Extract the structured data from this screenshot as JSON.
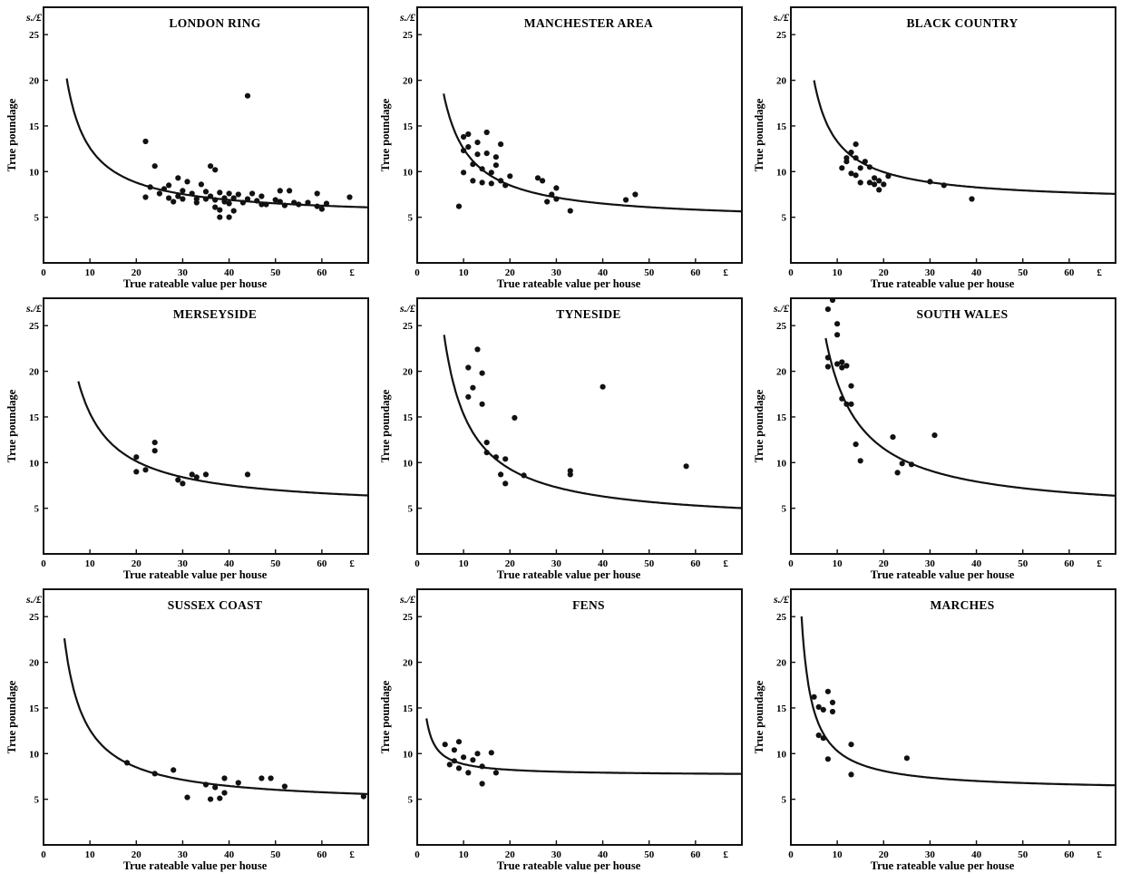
{
  "chart_data": [
    {
      "type": "scatter",
      "title": "LONDON RING",
      "unit_label": "s./£",
      "xlabel": "True rateable value per house",
      "ylabel": "True poundage",
      "x_ticks": [
        "0",
        "10",
        "20",
        "30",
        "40",
        "50",
        "60",
        "£"
      ],
      "y_ticks": [
        "5",
        "10",
        "15",
        "20",
        "25"
      ],
      "xlim": [
        0,
        70
      ],
      "ylim": [
        0,
        28
      ],
      "curve": {
        "a": 5.0,
        "b": 76,
        "x_start": 5
      },
      "points": [
        [
          22,
          13.3
        ],
        [
          22,
          7.2
        ],
        [
          23,
          8.3
        ],
        [
          24,
          10.6
        ],
        [
          25,
          7.6
        ],
        [
          26,
          8.1
        ],
        [
          27,
          7.1
        ],
        [
          27,
          8.5
        ],
        [
          28,
          6.7
        ],
        [
          29,
          9.3
        ],
        [
          29,
          7.3
        ],
        [
          30,
          7.0
        ],
        [
          30,
          7.9
        ],
        [
          31,
          8.9
        ],
        [
          32,
          7.6
        ],
        [
          33,
          7.0
        ],
        [
          33,
          6.6
        ],
        [
          34,
          8.6
        ],
        [
          35,
          7.8
        ],
        [
          35,
          7.0
        ],
        [
          36,
          10.6
        ],
        [
          36,
          7.3
        ],
        [
          37,
          10.2
        ],
        [
          37,
          6.9
        ],
        [
          37,
          6.1
        ],
        [
          38,
          7.7
        ],
        [
          38,
          5.0
        ],
        [
          38,
          5.8
        ],
        [
          39,
          7.1
        ],
        [
          39,
          6.7
        ],
        [
          40,
          7.6
        ],
        [
          40,
          6.5
        ],
        [
          40,
          5.0
        ],
        [
          41,
          7.1
        ],
        [
          41,
          5.7
        ],
        [
          42,
          7.5
        ],
        [
          43,
          6.6
        ],
        [
          44,
          18.3
        ],
        [
          44,
          7.0
        ],
        [
          45,
          7.6
        ],
        [
          46,
          6.8
        ],
        [
          47,
          7.3
        ],
        [
          47,
          6.4
        ],
        [
          48,
          6.4
        ],
        [
          50,
          6.9
        ],
        [
          51,
          7.9
        ],
        [
          51,
          6.7
        ],
        [
          52,
          6.3
        ],
        [
          53,
          7.9
        ],
        [
          54,
          6.6
        ],
        [
          55,
          6.4
        ],
        [
          57,
          6.6
        ],
        [
          59,
          6.2
        ],
        [
          59,
          7.6
        ],
        [
          60,
          5.9
        ],
        [
          61,
          6.5
        ],
        [
          66,
          7.2
        ]
      ]
    },
    {
      "type": "scatter",
      "title": "MANCHESTER AREA",
      "unit_label": "s./£",
      "xlabel": "True rateable value per house",
      "ylabel": "True poundage",
      "x_ticks": [
        "0",
        "10",
        "20",
        "30",
        "40",
        "50",
        "60",
        "£"
      ],
      "y_ticks": [
        "5",
        "10",
        "15",
        "20",
        "25"
      ],
      "xlim": [
        0,
        70
      ],
      "ylim": [
        0,
        28
      ],
      "curve": {
        "a": 4.5,
        "b": 80,
        "x_start": 5.7
      },
      "points": [
        [
          9,
          6.2
        ],
        [
          10,
          12.3
        ],
        [
          10,
          13.8
        ],
        [
          10,
          9.9
        ],
        [
          11,
          12.7
        ],
        [
          11,
          14.1
        ],
        [
          12,
          9.0
        ],
        [
          12,
          10.8
        ],
        [
          13,
          11.9
        ],
        [
          13,
          13.2
        ],
        [
          14,
          8.8
        ],
        [
          14,
          10.3
        ],
        [
          15,
          12.0
        ],
        [
          15,
          14.3
        ],
        [
          16,
          9.9
        ],
        [
          16,
          8.7
        ],
        [
          17,
          10.7
        ],
        [
          17,
          11.6
        ],
        [
          18,
          13.0
        ],
        [
          18,
          9.0
        ],
        [
          19,
          8.5
        ],
        [
          20,
          9.5
        ],
        [
          26,
          9.3
        ],
        [
          27,
          9.0
        ],
        [
          28,
          6.7
        ],
        [
          29,
          7.5
        ],
        [
          30,
          8.2
        ],
        [
          30,
          7.0
        ],
        [
          33,
          5.7
        ],
        [
          45,
          6.9
        ],
        [
          47,
          7.5
        ]
      ]
    },
    {
      "type": "scatter",
      "title": "BLACK COUNTRY",
      "unit_label": "s./£",
      "xlabel": "True rateable value per house",
      "ylabel": "True poundage",
      "x_ticks": [
        "0",
        "10",
        "20",
        "30",
        "40",
        "50",
        "60",
        "£"
      ],
      "y_ticks": [
        "5",
        "10",
        "15",
        "20",
        "25"
      ],
      "xlim": [
        0,
        70
      ],
      "ylim": [
        0,
        28
      ],
      "curve": {
        "a": 6.6,
        "b": 67,
        "x_start": 5
      },
      "points": [
        [
          11,
          10.4
        ],
        [
          12,
          11.5
        ],
        [
          12,
          11.1
        ],
        [
          13,
          12.1
        ],
        [
          13,
          9.8
        ],
        [
          14,
          13.0
        ],
        [
          14,
          11.5
        ],
        [
          14,
          9.6
        ],
        [
          15,
          10.4
        ],
        [
          15,
          8.8
        ],
        [
          16,
          11.1
        ],
        [
          17,
          10.5
        ],
        [
          17,
          8.8
        ],
        [
          18,
          9.3
        ],
        [
          18,
          8.6
        ],
        [
          19,
          9.0
        ],
        [
          19,
          8.0
        ],
        [
          20,
          8.6
        ],
        [
          21,
          9.5
        ],
        [
          30,
          8.9
        ],
        [
          33,
          8.5
        ],
        [
          39,
          7.0
        ]
      ]
    },
    {
      "type": "scatter",
      "title": "MERSEYSIDE",
      "unit_label": "s./£",
      "xlabel": "True rateable value per house",
      "ylabel": "True poundage",
      "x_ticks": [
        "0",
        "10",
        "20",
        "30",
        "40",
        "50",
        "60",
        "£"
      ],
      "y_ticks": [
        "5",
        "10",
        "15",
        "20",
        "25"
      ],
      "xlim": [
        0,
        70
      ],
      "ylim": [
        0,
        28
      ],
      "curve": {
        "a": 4.9,
        "b": 105,
        "x_start": 7.5
      },
      "points": [
        [
          20,
          10.6
        ],
        [
          20,
          9.0
        ],
        [
          22,
          9.2
        ],
        [
          24,
          12.2
        ],
        [
          24,
          11.3
        ],
        [
          29,
          8.1
        ],
        [
          30,
          7.7
        ],
        [
          32,
          8.7
        ],
        [
          33,
          8.4
        ],
        [
          35,
          8.7
        ],
        [
          44,
          8.7
        ]
      ]
    },
    {
      "type": "scatter",
      "title": "TYNESIDE",
      "unit_label": "s./£",
      "xlabel": "True rateable value per house",
      "ylabel": "True poundage",
      "x_ticks": [
        "0",
        "10",
        "20",
        "30",
        "40",
        "50",
        "60",
        "£"
      ],
      "y_ticks": [
        "5",
        "10",
        "15",
        "20",
        "25"
      ],
      "xlim": [
        0,
        70
      ],
      "ylim": [
        0,
        28
      ],
      "curve": {
        "a": 3.3,
        "b": 120,
        "x_start": 5.8
      },
      "points": [
        [
          11,
          20.4
        ],
        [
          11,
          17.2
        ],
        [
          12,
          18.2
        ],
        [
          13,
          22.4
        ],
        [
          14,
          19.8
        ],
        [
          14,
          16.4
        ],
        [
          15,
          12.2
        ],
        [
          15,
          11.1
        ],
        [
          17,
          10.6
        ],
        [
          18,
          8.7
        ],
        [
          19,
          7.7
        ],
        [
          19,
          10.4
        ],
        [
          21,
          14.9
        ],
        [
          23,
          8.6
        ],
        [
          33,
          8.7
        ],
        [
          33,
          9.1
        ],
        [
          40,
          18.3
        ],
        [
          58,
          9.6
        ]
      ]
    },
    {
      "type": "scatter",
      "title": "SOUTH WALES",
      "unit_label": "s./£",
      "xlabel": "True rateable value per house",
      "ylabel": "True poundage",
      "x_ticks": [
        "0",
        "10",
        "20",
        "30",
        "40",
        "50",
        "60",
        "£"
      ],
      "y_ticks": [
        "5",
        "10",
        "15",
        "20",
        "25"
      ],
      "xlim": [
        0,
        70
      ],
      "ylim": [
        0,
        28
      ],
      "curve": {
        "a": 4.3,
        "b": 145,
        "x_start": 7.5
      },
      "points": [
        [
          8,
          26.8
        ],
        [
          8,
          21.5
        ],
        [
          8,
          20.5
        ],
        [
          9,
          27.8
        ],
        [
          10,
          25.2
        ],
        [
          10,
          24.0
        ],
        [
          10,
          20.8
        ],
        [
          11,
          20.4
        ],
        [
          11,
          17.0
        ],
        [
          11,
          21.0
        ],
        [
          12,
          20.6
        ],
        [
          12,
          16.4
        ],
        [
          13,
          18.4
        ],
        [
          13,
          16.4
        ],
        [
          14,
          12.0
        ],
        [
          15,
          10.2
        ],
        [
          22,
          12.8
        ],
        [
          23,
          8.9
        ],
        [
          24,
          9.9
        ],
        [
          26,
          9.8
        ],
        [
          31,
          13.0
        ]
      ]
    },
    {
      "type": "scatter",
      "title": "SUSSEX COAST",
      "unit_label": "s./£",
      "xlabel": "True rateable value per house",
      "ylabel": "True poundage",
      "x_ticks": [
        "0",
        "10",
        "20",
        "30",
        "40",
        "50",
        "60",
        "£"
      ],
      "y_ticks": [
        "5",
        "10",
        "15",
        "20",
        "25"
      ],
      "xlim": [
        0,
        70
      ],
      "ylim": [
        0,
        28
      ],
      "curve": {
        "a": 4.4,
        "b": 82,
        "x_start": 4.5
      },
      "points": [
        [
          18,
          9.0
        ],
        [
          24,
          7.8
        ],
        [
          28,
          8.2
        ],
        [
          31,
          5.2
        ],
        [
          35,
          6.6
        ],
        [
          36,
          5.0
        ],
        [
          37,
          6.3
        ],
        [
          38,
          5.1
        ],
        [
          39,
          5.7
        ],
        [
          39,
          7.3
        ],
        [
          42,
          6.8
        ],
        [
          47,
          7.3
        ],
        [
          49,
          7.3
        ],
        [
          52,
          6.4
        ],
        [
          69,
          5.3
        ]
      ]
    },
    {
      "type": "scatter",
      "title": "FENS",
      "unit_label": "s./£",
      "xlabel": "True rateable value per house",
      "ylabel": "True poundage",
      "x_ticks": [
        "0",
        "10",
        "20",
        "30",
        "40",
        "50",
        "60",
        "£"
      ],
      "y_ticks": [
        "5",
        "10",
        "15",
        "20",
        "25"
      ],
      "xlim": [
        0,
        70
      ],
      "ylim": [
        0,
        28
      ],
      "curve": {
        "a": 7.6,
        "b": 12.5,
        "x_start": 2
      },
      "points": [
        [
          6,
          11.0
        ],
        [
          7,
          8.8
        ],
        [
          8,
          10.4
        ],
        [
          8,
          9.2
        ],
        [
          9,
          11.3
        ],
        [
          9,
          8.4
        ],
        [
          10,
          9.6
        ],
        [
          11,
          7.9
        ],
        [
          12,
          9.3
        ],
        [
          13,
          10.0
        ],
        [
          14,
          8.6
        ],
        [
          14,
          6.7
        ],
        [
          16,
          10.1
        ],
        [
          17,
          7.9
        ]
      ]
    },
    {
      "type": "scatter",
      "title": "MARCHES",
      "unit_label": "s./£",
      "xlabel": "True rateable value per house",
      "ylabel": "True poundage",
      "x_ticks": [
        "0",
        "10",
        "20",
        "30",
        "40",
        "50",
        "60",
        "£"
      ],
      "y_ticks": [
        "5",
        "10",
        "15",
        "20",
        "25"
      ],
      "xlim": [
        0,
        70
      ],
      "ylim": [
        0,
        28
      ],
      "curve": {
        "a": 5.9,
        "b": 44,
        "x_start": 2.3
      },
      "points": [
        [
          5,
          16.2
        ],
        [
          6,
          15.1
        ],
        [
          6,
          12.0
        ],
        [
          7,
          11.7
        ],
        [
          7,
          14.8
        ],
        [
          8,
          16.8
        ],
        [
          8,
          9.4
        ],
        [
          9,
          15.6
        ],
        [
          9,
          14.6
        ],
        [
          13,
          11.0
        ],
        [
          13,
          7.7
        ],
        [
          25,
          9.5
        ]
      ]
    }
  ]
}
